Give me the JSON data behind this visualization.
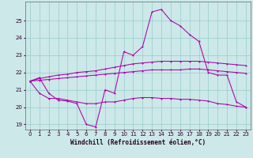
{
  "xlabel": "Windchill (Refroidissement éolien,°C)",
  "bg_color": "#cce8e8",
  "grid_color": "#99cccc",
  "line_color": "#aa00aa",
  "xlim": [
    -0.5,
    23.5
  ],
  "ylim": [
    18.7,
    26.1
  ],
  "yticks": [
    19,
    20,
    21,
    22,
    23,
    24,
    25
  ],
  "xticks": [
    0,
    1,
    2,
    3,
    4,
    5,
    6,
    7,
    8,
    9,
    10,
    11,
    12,
    13,
    14,
    15,
    16,
    17,
    18,
    19,
    20,
    21,
    22,
    23
  ],
  "line1_x": [
    0,
    1,
    2,
    3,
    4,
    5,
    6,
    7,
    8,
    9,
    10,
    11,
    12,
    13,
    14,
    15,
    16,
    17,
    18,
    19,
    20,
    21,
    22,
    23
  ],
  "line1_y": [
    21.5,
    21.65,
    21.75,
    21.85,
    21.9,
    22.0,
    22.05,
    22.1,
    22.2,
    22.3,
    22.4,
    22.5,
    22.55,
    22.6,
    22.65,
    22.65,
    22.65,
    22.65,
    22.65,
    22.6,
    22.55,
    22.5,
    22.45,
    22.4
  ],
  "line2_x": [
    0,
    1,
    2,
    3,
    4,
    5,
    6,
    7,
    8,
    9,
    10,
    11,
    12,
    13,
    14,
    15,
    16,
    17,
    18,
    19,
    20,
    21,
    22,
    23
  ],
  "line2_y": [
    21.5,
    21.55,
    21.6,
    21.65,
    21.7,
    21.75,
    21.8,
    21.85,
    21.9,
    21.95,
    22.0,
    22.05,
    22.1,
    22.15,
    22.15,
    22.15,
    22.15,
    22.2,
    22.2,
    22.15,
    22.1,
    22.05,
    22.0,
    21.95
  ],
  "line3_x": [
    0,
    1,
    2,
    3,
    4,
    5,
    6,
    7,
    8,
    9,
    10,
    11,
    12,
    13,
    14,
    15,
    16,
    17,
    18,
    19,
    20,
    21,
    22,
    23
  ],
  "line3_y": [
    21.5,
    20.8,
    20.5,
    20.5,
    20.4,
    20.3,
    20.2,
    20.2,
    20.3,
    20.3,
    20.4,
    20.5,
    20.55,
    20.55,
    20.5,
    20.5,
    20.45,
    20.45,
    20.4,
    20.35,
    20.2,
    20.15,
    20.05,
    20.0
  ],
  "line4_x": [
    0,
    1,
    2,
    3,
    4,
    5,
    6,
    7,
    8,
    9,
    10,
    11,
    12,
    13,
    14,
    15,
    16,
    17,
    18,
    19,
    20,
    21,
    22,
    23
  ],
  "line4_y": [
    21.5,
    21.7,
    20.8,
    20.4,
    20.35,
    20.2,
    19.0,
    18.85,
    21.0,
    20.8,
    23.2,
    23.0,
    23.5,
    25.5,
    25.65,
    25.0,
    24.7,
    24.2,
    23.8,
    22.0,
    21.85,
    21.85,
    20.3,
    20.0
  ]
}
